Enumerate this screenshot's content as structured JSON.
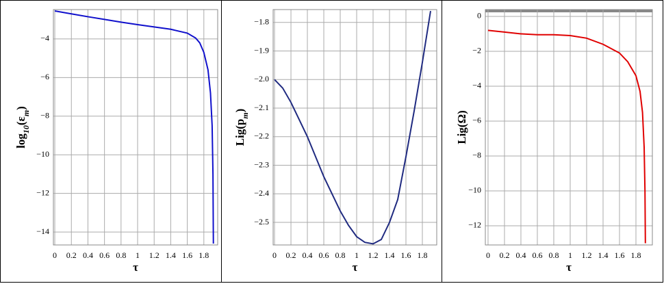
{
  "chart_data": [
    {
      "type": "line",
      "xlabel": "τ",
      "ylabel": [
        "log",
        "10",
        "(ε",
        "m",
        ")"
      ],
      "x": [
        0,
        0.2,
        0.4,
        0.6,
        0.8,
        1.0,
        1.2,
        1.4,
        1.6,
        1.7,
        1.75,
        1.8,
        1.85,
        1.88,
        1.9,
        1.91,
        1.915
      ],
      "series": [
        {
          "color": "#1010cc",
          "values": [
            -2.55,
            -2.7,
            -2.85,
            -2.99,
            -3.13,
            -3.26,
            -3.38,
            -3.5,
            -3.7,
            -3.95,
            -4.2,
            -4.7,
            -5.6,
            -6.8,
            -8.5,
            -11,
            -14.6
          ]
        }
      ],
      "xlim": [
        -0.017,
        1.967
      ],
      "ylim": [
        -14.67,
        -2.48
      ],
      "xticks": [
        0,
        0.2,
        0.4,
        0.6,
        0.8,
        1,
        1.2,
        1.4,
        1.6,
        1.8
      ],
      "yticks": [
        {
          "value": -4,
          "label": "−4"
        },
        {
          "value": -6,
          "label": "−6"
        },
        {
          "value": -8,
          "label": "−8"
        },
        {
          "value": -10,
          "label": "−10"
        },
        {
          "value": -12,
          "label": "−12"
        },
        {
          "value": -14,
          "label": "−14"
        }
      ],
      "grid": true
    },
    {
      "type": "line",
      "xlabel": "τ",
      "ylabel": [
        "Lig(p",
        "m",
        ")"
      ],
      "x": [
        0,
        0.1,
        0.2,
        0.3,
        0.4,
        0.5,
        0.6,
        0.7,
        0.8,
        0.9,
        1.0,
        1.1,
        1.2,
        1.3,
        1.4,
        1.5,
        1.6,
        1.7,
        1.8,
        1.9
      ],
      "series": [
        {
          "color": "#1f2a80",
          "values": [
            -2.0,
            -2.03,
            -2.08,
            -2.14,
            -2.2,
            -2.27,
            -2.34,
            -2.4,
            -2.46,
            -2.51,
            -2.55,
            -2.57,
            -2.575,
            -2.56,
            -2.5,
            -2.42,
            -2.27,
            -2.11,
            -1.94,
            -1.76
          ]
        }
      ],
      "xlim": [
        -0.017,
        1.975
      ],
      "ylim": [
        -2.579,
        -1.755
      ],
      "xticks": [
        0,
        0.2,
        0.4,
        0.6,
        0.8,
        1,
        1.2,
        1.4,
        1.6,
        1.8
      ],
      "yticks": [
        {
          "value": -1.8,
          "label": "−1.8"
        },
        {
          "value": -1.9,
          "label": "−1.9"
        },
        {
          "value": -2.0,
          "label": "−2.0"
        },
        {
          "value": -2.1,
          "label": "−2.1"
        },
        {
          "value": -2.2,
          "label": "−2.2"
        },
        {
          "value": -2.3,
          "label": "−2.3"
        },
        {
          "value": -2.4,
          "label": "−2.4"
        },
        {
          "value": -2.5,
          "label": "−2.5"
        }
      ],
      "grid": true
    },
    {
      "type": "line",
      "xlabel": "τ",
      "ylabel": [
        "Lig(Ω)"
      ],
      "x": [
        0,
        0.2,
        0.4,
        0.6,
        0.8,
        1.0,
        1.2,
        1.4,
        1.6,
        1.7,
        1.8,
        1.85,
        1.88,
        1.9,
        1.91,
        1.915
      ],
      "series": [
        {
          "color": "#e00000",
          "values": [
            -0.8,
            -0.9,
            -1.0,
            -1.05,
            -1.05,
            -1.1,
            -1.25,
            -1.6,
            -2.1,
            -2.6,
            -3.4,
            -4.3,
            -5.5,
            -7.5,
            -10,
            -13
          ]
        }
      ],
      "xlim": [
        -0.033,
        2.0
      ],
      "ylim": [
        -13.1,
        0.39
      ],
      "xticks": [
        0,
        0.2,
        0.4,
        0.6,
        0.8,
        1,
        1.2,
        1.4,
        1.6,
        1.8
      ],
      "yticks": [
        0,
        {
          "value": -2,
          "label": "−2"
        },
        {
          "value": -4,
          "label": "−4"
        },
        {
          "value": -6,
          "label": "−6"
        },
        {
          "value": -8,
          "label": "−8"
        },
        {
          "value": -10,
          "label": "−10"
        },
        {
          "value": -12,
          "label": "−12"
        }
      ],
      "grid": true
    }
  ]
}
